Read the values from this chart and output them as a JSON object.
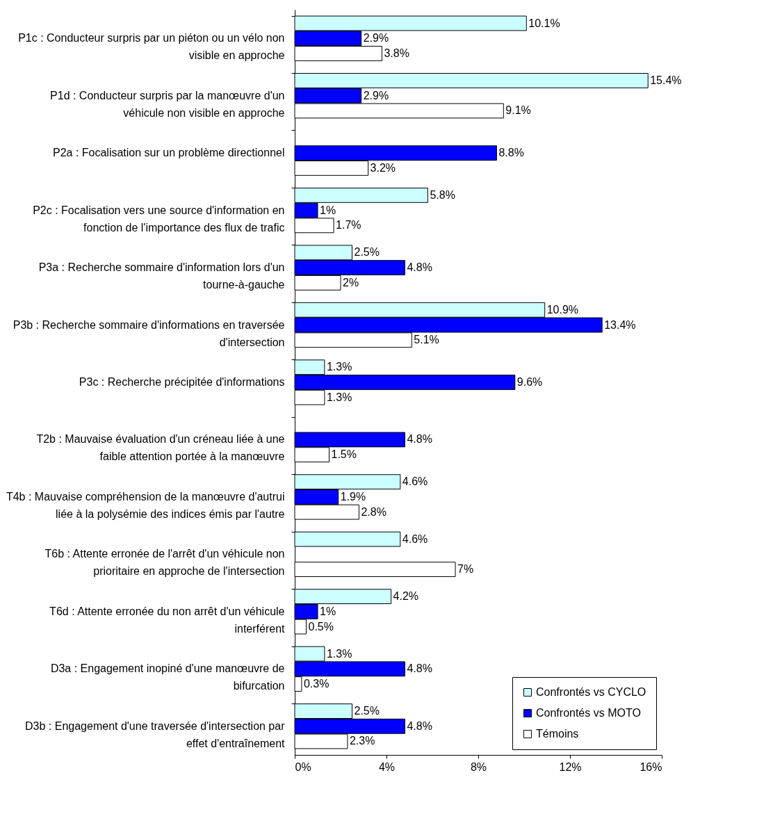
{
  "chart_data": {
    "type": "bar",
    "orientation": "horizontal",
    "categories": [
      "P1c : Conducteur surpris par un piéton ou un vélo non visible en approche",
      "P1d : Conducteur surpris par la manœuvre d'un véhicule non visible en approche",
      "P2a : Focalisation sur un problème directionnel",
      "P2c : Focalisation vers une source d'information en fonction de l'importance des flux de trafic",
      "P3a : Recherche sommaire d'information lors d'un tourne-à-gauche",
      "P3b : Recherche sommaire d'informations en traversée d'intersection",
      "P3c : Recherche précipitée d'informations",
      "T2b : Mauvaise évaluation d'un créneau liée à une faible attention portée à la manœuvre",
      "T4b : Mauvaise compréhension de la manœuvre d'autrui liée à la polysémie des indices émis par l'autre",
      "T6b : Attente erronée de l'arrêt d'un véhicule non prioritaire en approche de l'intersection",
      "T6d : Attente erronée du non arrêt d'un véhicule interférent",
      "D3a : Engagement inopiné d'une manœuvre de bifurcation",
      "D3b : Engagement d'une traversée d'intersection par effet d'entraînement"
    ],
    "series": [
      {
        "name": "Confrontés vs CYCLO",
        "color": "#ccffff",
        "values": [
          10.1,
          15.4,
          null,
          5.8,
          2.5,
          10.9,
          1.3,
          null,
          4.6,
          4.6,
          4.2,
          1.3,
          2.5
        ],
        "value_labels": [
          "10.1%",
          "15.4%",
          null,
          "5.8%",
          "2.5%",
          "10.9%",
          "1.3%",
          null,
          "4.6%",
          "4.6%",
          "4.2%",
          "1.3%",
          "2.5%"
        ]
      },
      {
        "name": "Confrontés vs MOTO",
        "color": "#0000ff",
        "values": [
          2.9,
          2.9,
          8.8,
          1,
          4.8,
          13.4,
          9.6,
          4.8,
          1.9,
          null,
          1,
          4.8,
          4.8
        ],
        "value_labels": [
          "2.9%",
          "2.9%",
          "8.8%",
          "1%",
          "4.8%",
          "13.4%",
          "9.6%",
          "4.8%",
          "1.9%",
          null,
          "1%",
          "4.8%",
          "4.8%"
        ]
      },
      {
        "name": "Témoins",
        "color": "#ffffff",
        "values": [
          3.8,
          9.1,
          3.2,
          1.7,
          2,
          5.1,
          1.3,
          1.5,
          2.8,
          7,
          0.5,
          0.3,
          2.3
        ],
        "value_labels": [
          "3.8%",
          "9.1%",
          "3.2%",
          "1.7%",
          "2%",
          "5.1%",
          "1.3%",
          "1.5%",
          "2.8%",
          "7%",
          "0.5%",
          "0.3%",
          "2.3%"
        ]
      }
    ],
    "xlim": [
      0,
      16
    ],
    "xticks": [
      {
        "value": 0,
        "label": "0%"
      },
      {
        "value": 4,
        "label": "4%"
      },
      {
        "value": 8,
        "label": "8%"
      },
      {
        "value": 12,
        "label": "12%"
      },
      {
        "value": 16,
        "label": "16%"
      }
    ],
    "legend": "bottom right",
    "grid": false
  }
}
